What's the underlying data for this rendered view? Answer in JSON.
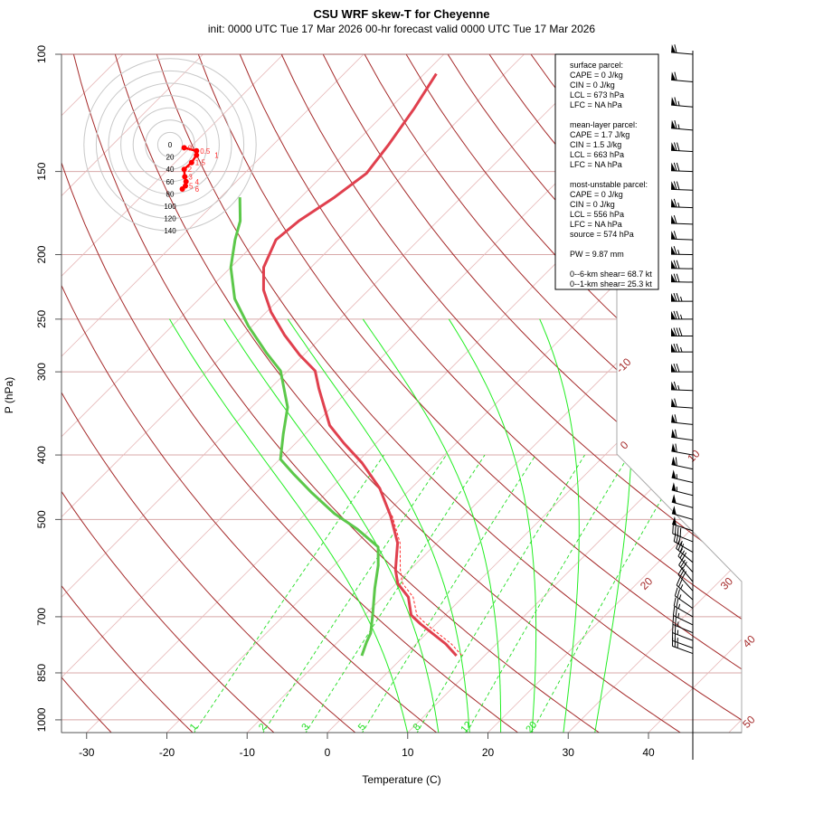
{
  "title": "CSU WRF skew-T for Cheyenne",
  "subtitle": "init: 0000 UTC Tue 17 Mar 2026     00-hr forecast valid 0000 UTC Tue 17 Mar 2026",
  "info_box": {
    "sections": [
      [
        "surface parcel:",
        "CAPE = 0 J/kg",
        "CIN = 0 J/kg",
        "LCL = 673 hPa",
        "LFC = NA hPa"
      ],
      [
        "mean-layer parcel:",
        "CAPE = 1.7 J/kg",
        "CIN = 1.5 J/kg",
        "LCL = 663 hPa",
        "LFC = NA hPa"
      ],
      [
        "most-unstable parcel:",
        "CAPE = 0 J/kg",
        "CIN = 0 J/kg",
        "LCL = 556 hPa",
        "LFC = NA hPa",
        "source = 574 hPa"
      ],
      [
        "PW =  9.87 mm"
      ],
      [
        "0--6-km shear= 68.7 kt",
        "0--1-km shear= 25.3 kt"
      ]
    ]
  },
  "chart_data": {
    "type": "line",
    "subtype": "skew-T log-P",
    "title": "CSU WRF skew-T for Cheyenne",
    "xlabel": "Temperature (C)",
    "ylabel": "P (hPa)",
    "xticks": [
      -30,
      -20,
      -10,
      0,
      10,
      20,
      30,
      40
    ],
    "yticks": [
      100,
      150,
      200,
      250,
      300,
      400,
      500,
      700,
      850,
      1000
    ],
    "ylim": [
      1050,
      100
    ],
    "colors": {
      "temperature": "#e0404e",
      "dewpoint": "#5cc84a",
      "virtual_temperature": "#ff2a2a",
      "dry_adiabat": "#a52a2a",
      "isotherm": "#e7baba",
      "isobar": "#d8a8a8",
      "moist_adiabat": "#22ee22",
      "mixing_ratio": "#22dd22",
      "hodograph": "#ff0000"
    },
    "isotherm_labels": [
      "-10",
      "0",
      "10",
      "20",
      "30",
      "40",
      "50"
    ],
    "isotherm_label_values": [
      -10,
      0,
      10,
      20,
      30,
      40,
      50
    ],
    "dry_adiabats_theta_c": [
      -30,
      -20,
      -10,
      0,
      10,
      20,
      30,
      40,
      50,
      60,
      70,
      80,
      90,
      100,
      110,
      120,
      130,
      140,
      150,
      160,
      170
    ],
    "moist_adiabats_thetaw_c": [
      8,
      12,
      16,
      20,
      24,
      28,
      32
    ],
    "mixing_ratio_labels": [
      "1",
      "2",
      "3",
      "5",
      "8",
      "12",
      "20"
    ],
    "mixing_ratio_values": [
      1,
      2,
      3,
      5,
      8,
      12,
      20
    ],
    "series": [
      {
        "name": "temperature",
        "points": [
          [
            107,
            -68.5
          ],
          [
            121,
            -66.9
          ],
          [
            137,
            -65.6
          ],
          [
            151,
            -64.8
          ],
          [
            164,
            -65.8
          ],
          [
            178,
            -67.3
          ],
          [
            190,
            -67.8
          ],
          [
            209,
            -65.9
          ],
          [
            226,
            -63.1
          ],
          [
            244,
            -59.4
          ],
          [
            264,
            -54.9
          ],
          [
            283,
            -50.5
          ],
          [
            299,
            -46.6
          ],
          [
            318,
            -43.9
          ],
          [
            361,
            -38.0
          ],
          [
            384,
            -34.0
          ],
          [
            411,
            -29.3
          ],
          [
            449,
            -23.9
          ],
          [
            493,
            -19.2
          ],
          [
            542,
            -14.9
          ],
          [
            595,
            -11.8
          ],
          [
            624,
            -9.8
          ],
          [
            654,
            -6.8
          ],
          [
            696,
            -4.2
          ],
          [
            718,
            -1.9
          ],
          [
            769,
            3.7
          ],
          [
            801,
            6.5
          ]
        ]
      },
      {
        "name": "dewpoint",
        "points": [
          [
            164,
            -77.6
          ],
          [
            178,
            -74.6
          ],
          [
            190,
            -72.9
          ],
          [
            209,
            -70.0
          ],
          [
            233,
            -65.6
          ],
          [
            256,
            -60.5
          ],
          [
            281,
            -54.9
          ],
          [
            299,
            -50.9
          ],
          [
            339,
            -45.5
          ],
          [
            372,
            -42.7
          ],
          [
            406,
            -39.9
          ],
          [
            428,
            -36.3
          ],
          [
            456,
            -31.8
          ],
          [
            490,
            -26.4
          ],
          [
            517,
            -21.6
          ],
          [
            538,
            -18.5
          ],
          [
            550,
            -16.8
          ],
          [
            586,
            -14.5
          ],
          [
            634,
            -12.1
          ],
          [
            696,
            -9.0
          ],
          [
            741,
            -7.0
          ],
          [
            764,
            -6.4
          ],
          [
            801,
            -5.3
          ]
        ]
      },
      {
        "name": "virtual temperature",
        "points": [
          [
            493,
            -19.0
          ],
          [
            542,
            -14.6
          ],
          [
            595,
            -11.2
          ],
          [
            624,
            -9.2
          ],
          [
            654,
            -6.2
          ],
          [
            696,
            -3.5
          ],
          [
            718,
            -1.2
          ],
          [
            769,
            4.4
          ],
          [
            801,
            7.2
          ]
        ]
      }
    ],
    "hodograph": {
      "ring_labels": [
        "0",
        "20",
        "40",
        "60",
        "80",
        "100",
        "120",
        "140"
      ],
      "ring_values": [
        0,
        20,
        40,
        60,
        80,
        100,
        120,
        140
      ],
      "points": [
        {
          "label": "0",
          "u": 23,
          "v": -5
        },
        {
          "label": "0.5",
          "u": 43,
          "v": -10
        },
        {
          "label": "1",
          "u": 43,
          "v": -17
        },
        {
          "label": "1.5",
          "u": 35,
          "v": -29
        },
        {
          "label": "2",
          "u": 23,
          "v": -40
        },
        {
          "label": "3",
          "u": 24,
          "v": -52
        },
        {
          "label": "4",
          "u": 26,
          "v": -60
        },
        {
          "label": "5",
          "u": 25,
          "v": -67
        },
        {
          "label": "6",
          "u": 20,
          "v": -72
        }
      ]
    },
    "winds": [
      {
        "p": 100,
        "dir": 275,
        "spd": 60
      },
      {
        "p": 110,
        "dir": 275,
        "spd": 62
      },
      {
        "p": 120,
        "dir": 275,
        "spd": 65
      },
      {
        "p": 130,
        "dir": 275,
        "spd": 65
      },
      {
        "p": 140,
        "dir": 273,
        "spd": 68
      },
      {
        "p": 150,
        "dir": 272,
        "spd": 70
      },
      {
        "p": 160,
        "dir": 272,
        "spd": 68
      },
      {
        "p": 170,
        "dir": 272,
        "spd": 65
      },
      {
        "p": 180,
        "dir": 272,
        "spd": 62
      },
      {
        "p": 190,
        "dir": 272,
        "spd": 60
      },
      {
        "p": 200,
        "dir": 271,
        "spd": 65
      },
      {
        "p": 210,
        "dir": 271,
        "spd": 70
      },
      {
        "p": 220,
        "dir": 271,
        "spd": 72
      },
      {
        "p": 235,
        "dir": 270,
        "spd": 75
      },
      {
        "p": 250,
        "dir": 270,
        "spd": 75
      },
      {
        "p": 265,
        "dir": 270,
        "spd": 78
      },
      {
        "p": 280,
        "dir": 270,
        "spd": 75
      },
      {
        "p": 300,
        "dir": 270,
        "spd": 72
      },
      {
        "p": 320,
        "dir": 272,
        "spd": 65
      },
      {
        "p": 340,
        "dir": 274,
        "spd": 62
      },
      {
        "p": 360,
        "dir": 276,
        "spd": 60
      },
      {
        "p": 380,
        "dir": 278,
        "spd": 58
      },
      {
        "p": 400,
        "dir": 280,
        "spd": 60
      },
      {
        "p": 420,
        "dir": 282,
        "spd": 58
      },
      {
        "p": 440,
        "dir": 283,
        "spd": 55
      },
      {
        "p": 460,
        "dir": 284,
        "spd": 55
      },
      {
        "p": 480,
        "dir": 285,
        "spd": 52
      },
      {
        "p": 500,
        "dir": 286,
        "spd": 50
      },
      {
        "p": 520,
        "dir": 288,
        "spd": 50
      },
      {
        "p": 540,
        "dir": 292,
        "spd": 40
      },
      {
        "p": 560,
        "dir": 300,
        "spd": 35
      },
      {
        "p": 580,
        "dir": 310,
        "spd": 30
      },
      {
        "p": 600,
        "dir": 318,
        "spd": 30
      },
      {
        "p": 620,
        "dir": 320,
        "spd": 28
      },
      {
        "p": 640,
        "dir": 318,
        "spd": 28
      },
      {
        "p": 660,
        "dir": 312,
        "spd": 25
      },
      {
        "p": 680,
        "dir": 305,
        "spd": 25
      },
      {
        "p": 700,
        "dir": 300,
        "spd": 25
      },
      {
        "p": 720,
        "dir": 296,
        "spd": 25
      },
      {
        "p": 740,
        "dir": 293,
        "spd": 25
      },
      {
        "p": 760,
        "dir": 291,
        "spd": 25
      },
      {
        "p": 780,
        "dir": 290,
        "spd": 25
      },
      {
        "p": 795,
        "dir": 290,
        "spd": 25
      }
    ]
  }
}
